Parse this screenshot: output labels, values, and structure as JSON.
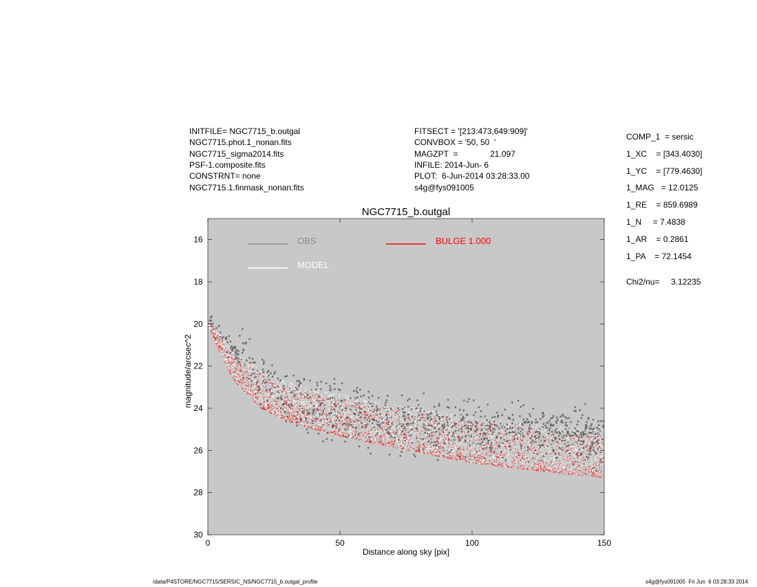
{
  "header_left": [
    "INITFILE= NGC7715_b.outgal",
    "NGC7715.phot.1_nonan.fits",
    "NGC7715_sigma2014.fits",
    "PSF-1.composite.fits",
    "CONSTRNT= none",
    "NGC7715.1.finmask_nonan.fits"
  ],
  "header_mid": [
    "FITSECT = '[213:473,649:909]'",
    "CONVBOX = '50, 50  '",
    "MAGZPT  =              21.097",
    "INFILE: 2014-Jun- 6",
    "PLOT:  6-Jun-2014 03:28:33.00",
    "s4g@fys091005"
  ],
  "params": [
    "COMP_1  = sersic",
    "1_XC    = [343.4030]",
    "1_YC    = [779.4630]",
    "1_MAG   = 12.0125",
    "1_RE    = 859.6989",
    "1_N     = 7.4838",
    "1_AR    = 0.2861",
    "1_PA    = 72.1454"
  ],
  "chi2": "Chi2/nu=     3.12235",
  "footer_left": "/data/P4STORE/NGC7715/SERSIC_NS/NGC7715_b.outgal_profile",
  "footer_right": "s4g@fys091005  Fri Jun  6 03:28:33 2014",
  "chart_data": {
    "type": "scatter",
    "title": "NGC7715_b.outgal",
    "xlabel": "Distance along sky [pix]",
    "ylabel": "magnitude/arcsec^2",
    "xlim": [
      0,
      150
    ],
    "ylim": [
      30,
      15
    ],
    "x_ticks": [
      0,
      50,
      100,
      150
    ],
    "y_ticks": [
      16,
      18,
      20,
      22,
      24,
      26,
      28,
      30
    ],
    "background": "#c8c8c8",
    "legend_placement": "top",
    "series": [
      {
        "name": "OBS",
        "color": "#666666",
        "text_color": "#8a8a8a",
        "trend": [
          [
            0,
            19.9
          ],
          [
            5,
            20.5
          ],
          [
            10,
            21.3
          ],
          [
            20,
            22.6
          ],
          [
            30,
            23.3
          ],
          [
            40,
            23.9
          ],
          [
            60,
            24.4
          ],
          [
            80,
            24.8
          ],
          [
            100,
            25.0
          ],
          [
            120,
            25.3
          ],
          [
            150,
            25.5
          ]
        ],
        "scatter_mag": 1.6
      },
      {
        "name": "MODEL",
        "color": "#ffffff",
        "text_color": "#ffffff",
        "upper_edge": [
          [
            0,
            19.9
          ],
          [
            5,
            20.6
          ],
          [
            10,
            21.3
          ],
          [
            20,
            22.2
          ],
          [
            30,
            22.7
          ],
          [
            40,
            23.1
          ],
          [
            60,
            23.6
          ],
          [
            80,
            24.0
          ],
          [
            100,
            24.4
          ],
          [
            120,
            24.7
          ],
          [
            150,
            25.1
          ]
        ],
        "lower_edge": [
          [
            0,
            20.0
          ],
          [
            5,
            21.5
          ],
          [
            10,
            22.7
          ],
          [
            20,
            24.0
          ],
          [
            30,
            24.6
          ],
          [
            40,
            25.0
          ],
          [
            60,
            25.6
          ],
          [
            80,
            26.1
          ],
          [
            100,
            26.6
          ],
          [
            120,
            26.9
          ],
          [
            150,
            27.3
          ]
        ]
      },
      {
        "name": "BULGE  1.000",
        "color": "#ff0000",
        "text_color": "#ff0000",
        "upper_edge": [
          [
            0,
            19.9
          ],
          [
            5,
            20.6
          ],
          [
            10,
            21.3
          ],
          [
            20,
            22.2
          ],
          [
            30,
            22.7
          ],
          [
            40,
            23.1
          ],
          [
            60,
            23.6
          ],
          [
            80,
            24.0
          ],
          [
            100,
            24.4
          ],
          [
            120,
            24.7
          ],
          [
            150,
            25.1
          ]
        ],
        "lower_edge": [
          [
            0,
            20.0
          ],
          [
            5,
            21.5
          ],
          [
            10,
            22.7
          ],
          [
            20,
            24.0
          ],
          [
            30,
            24.6
          ],
          [
            40,
            25.0
          ],
          [
            60,
            25.6
          ],
          [
            80,
            26.1
          ],
          [
            100,
            26.6
          ],
          [
            120,
            26.9
          ],
          [
            150,
            27.3
          ]
        ]
      }
    ]
  }
}
